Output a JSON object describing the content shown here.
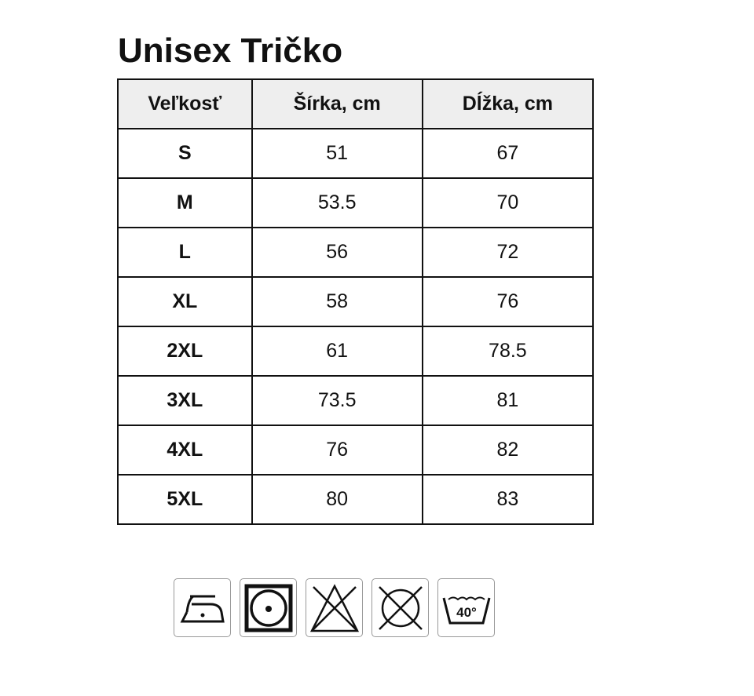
{
  "title": "Unisex Tričko",
  "table": {
    "headers": [
      "Veľkosť",
      "Šírka, cm",
      "Dĺžka, cm"
    ],
    "rows": [
      [
        "S",
        "51",
        "67"
      ],
      [
        "M",
        "53.5",
        "70"
      ],
      [
        "L",
        "56",
        "72"
      ],
      [
        "XL",
        "58",
        "76"
      ],
      [
        "2XL",
        "61",
        "78.5"
      ],
      [
        "3XL",
        "73.5",
        "81"
      ],
      [
        "4XL",
        "76",
        "82"
      ],
      [
        "5XL",
        "80",
        "83"
      ]
    ]
  },
  "care_icons": [
    {
      "name": "iron-low-temp-icon"
    },
    {
      "name": "tumble-dry-low-icon"
    },
    {
      "name": "no-bleach-icon"
    },
    {
      "name": "no-dry-clean-icon"
    },
    {
      "name": "wash-40-icon",
      "label": "40°"
    }
  ]
}
